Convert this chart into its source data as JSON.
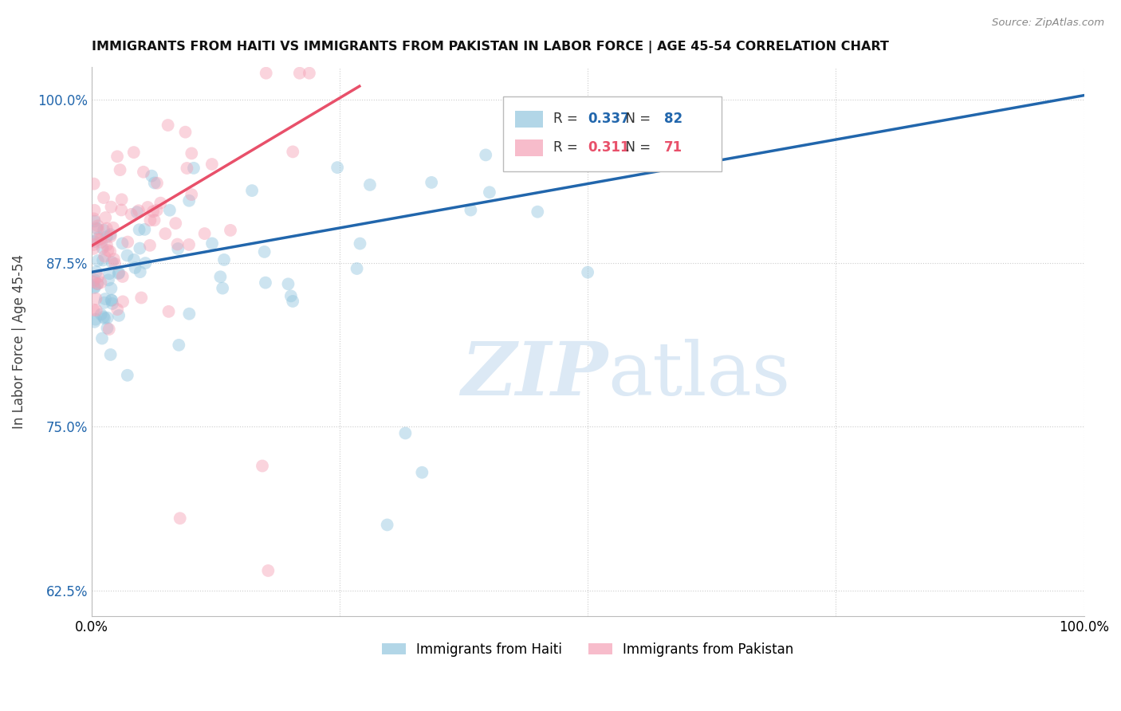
{
  "title": "IMMIGRANTS FROM HAITI VS IMMIGRANTS FROM PAKISTAN IN LABOR FORCE | AGE 45-54 CORRELATION CHART",
  "source": "Source: ZipAtlas.com",
  "ylabel": "In Labor Force | Age 45-54",
  "xlim": [
    0.0,
    1.0
  ],
  "ylim": [
    0.605,
    1.025
  ],
  "yticks": [
    0.625,
    0.75,
    0.875,
    1.0
  ],
  "ytick_labels": [
    "62.5%",
    "75.0%",
    "87.5%",
    "100.0%"
  ],
  "legend_haiti_R": "0.337",
  "legend_haiti_N": "82",
  "legend_pakistan_R": "0.311",
  "legend_pakistan_N": "71",
  "color_haiti": "#92c5de",
  "color_pakistan": "#f4a0b5",
  "color_haiti_line": "#2166ac",
  "color_pakistan_line": "#e8506a",
  "watermark_color": "#dce9f5",
  "background_color": "#ffffff",
  "haiti_trend_x0": 0.0,
  "haiti_trend_y0": 0.868,
  "haiti_trend_x1": 1.0,
  "haiti_trend_y1": 1.003,
  "pakistan_trend_x0": 0.0,
  "pakistan_trend_y0": 0.888,
  "pakistan_trend_x1": 0.27,
  "pakistan_trend_y1": 1.01
}
